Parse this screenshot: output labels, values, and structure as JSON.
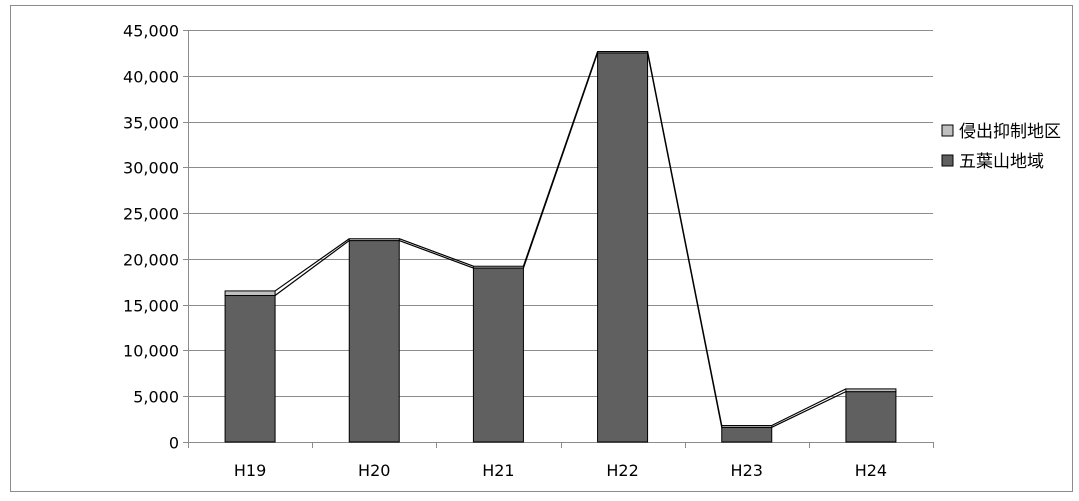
{
  "chart_data": {
    "type": "bar",
    "stacked": true,
    "categories": [
      "H19",
      "H20",
      "H21",
      "H22",
      "H23",
      "H24"
    ],
    "series": [
      {
        "name": "五葉山地域",
        "color": "#606060",
        "values": [
          16000,
          22000,
          19000,
          42500,
          1600,
          5500
        ]
      },
      {
        "name": "侵出抑制地区",
        "color": "#c0c0c0",
        "values": [
          500,
          200,
          200,
          150,
          200,
          300
        ]
      }
    ],
    "ylim": [
      0,
      45000
    ],
    "yticks": [
      0,
      5000,
      10000,
      15000,
      20000,
      25000,
      30000,
      35000,
      40000,
      45000
    ],
    "ytick_labels": [
      "0",
      "5,000",
      "10,000",
      "15,000",
      "20,000",
      "25,000",
      "30,000",
      "35,000",
      "40,000",
      "45,000"
    ],
    "grid": true,
    "legend_position": "right",
    "series_lines": true,
    "title": "",
    "xlabel": "",
    "ylabel": ""
  }
}
